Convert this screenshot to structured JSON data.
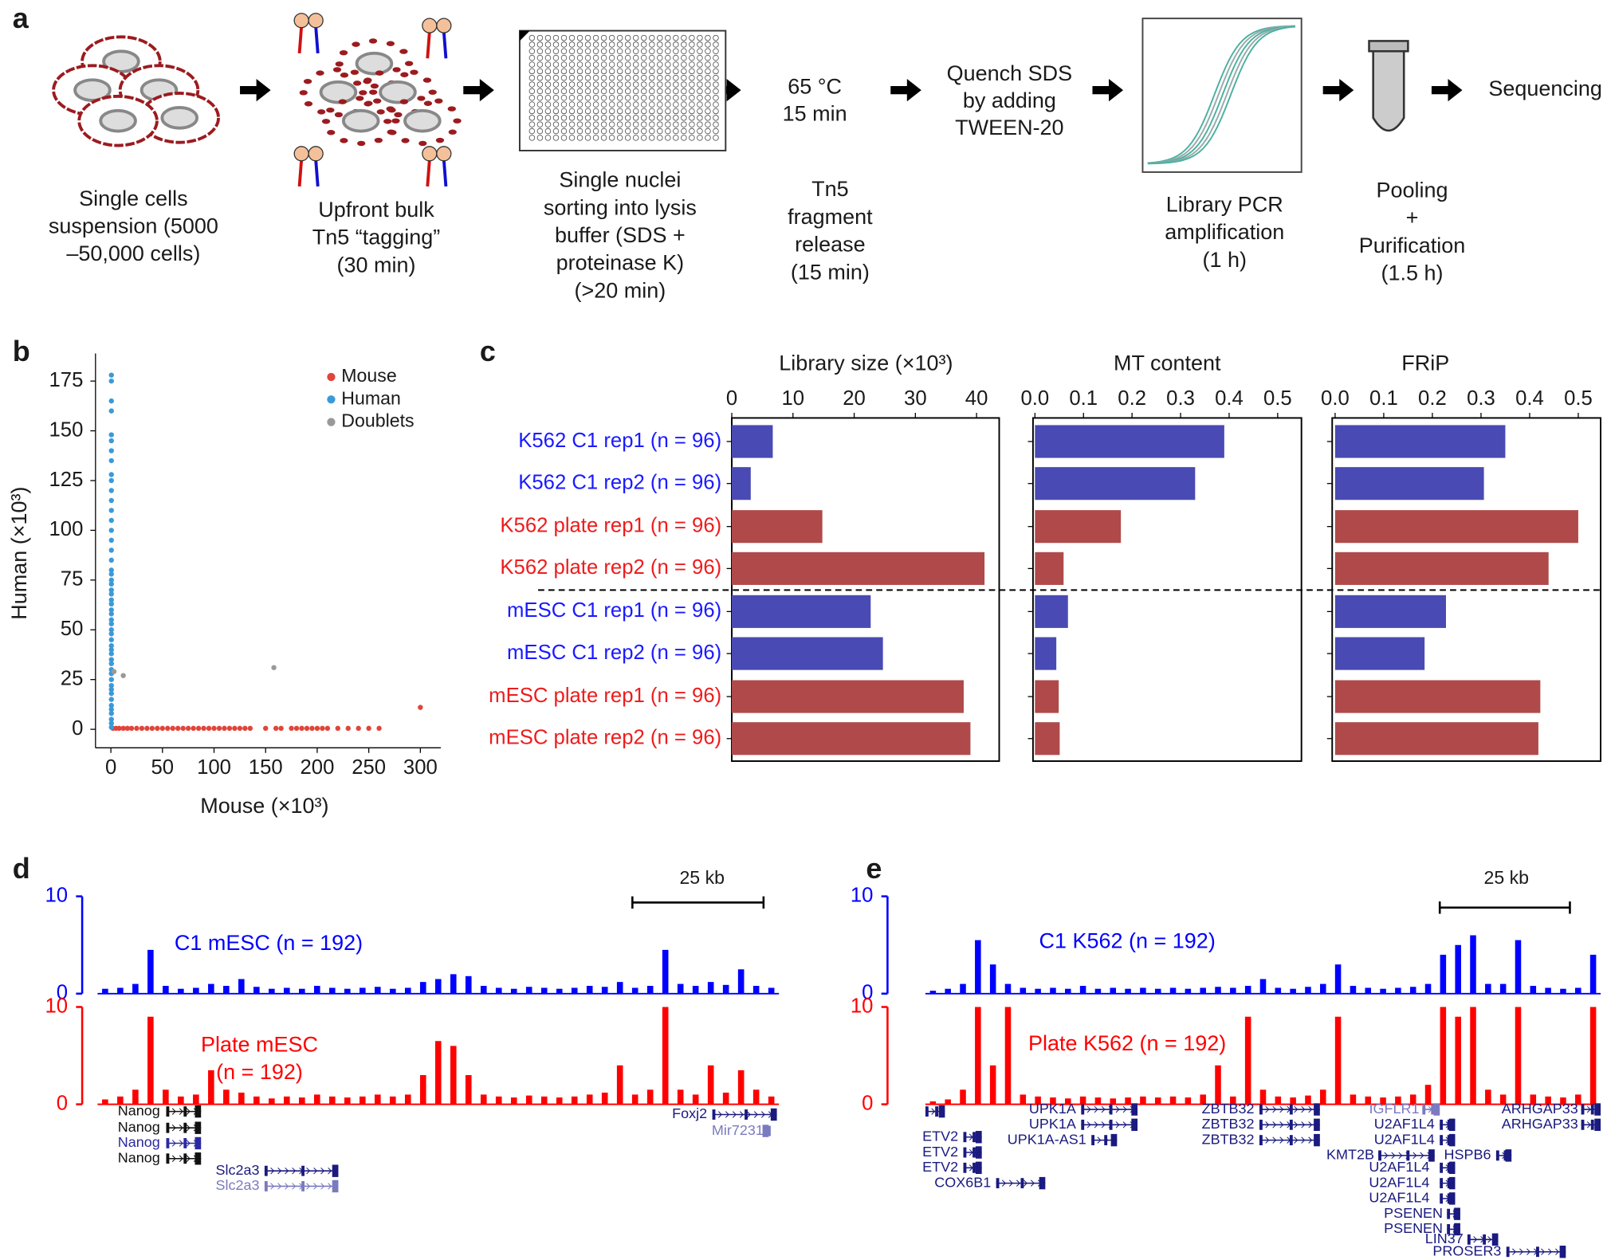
{
  "panels": [
    "a",
    "b",
    "c",
    "d",
    "e"
  ],
  "workflow": {
    "captions": [
      [
        "Single cells",
        "suspension (5000",
        "–50,000 cells)"
      ],
      [
        "Upfront bulk",
        "Tn5 “tagging”",
        "(30 min)"
      ],
      [
        "Single nuclei",
        "sorting into lysis",
        "buffer (SDS +",
        "proteinase K)",
        "(>20 min)"
      ],
      [
        "Tn5",
        "fragment",
        "release",
        "(15 min)"
      ],
      [
        "Library PCR",
        "amplification",
        "(1 h)"
      ],
      [
        "Pooling",
        "+",
        "Purification",
        "(1.5 h)"
      ]
    ],
    "inline": [
      [
        "65 °C",
        "15 min"
      ],
      [
        "Quench SDS",
        "by adding",
        "TWEEN-20"
      ],
      [
        "Sequencing"
      ]
    ]
  },
  "chart_data": [
    {
      "type": "scatter",
      "x_label": "Mouse (×10³)",
      "y_label": "Human (×10³)",
      "xlim": [
        -14.9,
        319.8
      ],
      "ylim": [
        -9.3,
        188.9
      ],
      "xticks": [
        0,
        50,
        100,
        150,
        200,
        250,
        300
      ],
      "yticks": [
        0,
        25,
        50,
        75,
        100,
        125,
        150,
        175
      ],
      "series": [
        {
          "name": "Mouse",
          "color": "#e0453a",
          "x": [
            2,
            5,
            8,
            12,
            16,
            20,
            25,
            30,
            35,
            40,
            45,
            50,
            55,
            60,
            65,
            70,
            75,
            80,
            85,
            90,
            95,
            100,
            105,
            110,
            115,
            120,
            125,
            130,
            135,
            150,
            160,
            165,
            175,
            180,
            185,
            190,
            195,
            200,
            205,
            210,
            220,
            230,
            240,
            250,
            260,
            300
          ],
          "y": [
            0.5,
            0.5,
            0.5,
            0.5,
            0.5,
            0.5,
            0.5,
            0.5,
            0.5,
            0.5,
            0.5,
            0.5,
            0.5,
            0.5,
            0.5,
            0.5,
            0.5,
            0.5,
            0.5,
            0.5,
            0.5,
            0.5,
            0.5,
            0.5,
            0.5,
            0.5,
            0.5,
            0.5,
            0.5,
            0.5,
            0.5,
            0.5,
            0.5,
            0.5,
            0.5,
            0.5,
            0.5,
            0.5,
            0.5,
            0.5,
            0.5,
            0.5,
            0.5,
            0.5,
            0.5,
            11
          ]
        },
        {
          "name": "Human",
          "color": "#3a9ad9",
          "x": [
            0.5,
            0.5,
            0.5,
            0.5,
            0.5,
            0.5,
            0.5,
            0.5,
            0.5,
            0.5,
            0.5,
            0.5,
            0.5,
            0.5,
            0.5,
            0.5,
            0.5,
            0.5,
            0.5,
            0.5,
            0.5,
            0.5,
            0.5,
            0.5,
            0.5,
            0.5,
            0.5,
            0.5,
            0.5,
            0.5,
            0.5,
            0.5,
            0.5,
            0.5,
            0.5,
            0.5,
            0.5,
            0.5,
            0.5,
            0.5,
            0.5,
            0.5,
            0.5,
            0.5,
            0.5,
            0.5,
            0.5,
            0.5,
            0.5,
            0.5,
            0.5
          ],
          "y": [
            1,
            3,
            5,
            8,
            10,
            12,
            15,
            18,
            20,
            22,
            25,
            28,
            30,
            33,
            35,
            38,
            40,
            42,
            45,
            48,
            50,
            53,
            55,
            58,
            60,
            63,
            65,
            68,
            70,
            73,
            75,
            78,
            80,
            85,
            90,
            95,
            100,
            105,
            110,
            115,
            120,
            125,
            128,
            135,
            140,
            145,
            148,
            160,
            165,
            175,
            178
          ]
        },
        {
          "name": "Doublets",
          "color": "#999999",
          "x": [
            3,
            12,
            158
          ],
          "y": [
            29,
            27,
            31
          ]
        }
      ]
    },
    {
      "type": "barh",
      "title": "Library size (×10³)",
      "categories": [
        "K562 C1 rep1 (n = 96)",
        "K562 C1 rep2 (n = 96)",
        "K562 plate rep1 (n = 96)",
        "K562 plate rep2 (n = 96)",
        "mESC C1 rep1 (n = 96)",
        "mESC C1 rep2 (n = 96)",
        "mESC plate rep1 (n = 96)",
        "mESC plate rep2 (n = 96)"
      ],
      "label_colors": [
        "#1a1aff",
        "#1a1aff",
        "#ee1c1c",
        "#ee1c1c",
        "#1a1aff",
        "#1a1aff",
        "#ee1c1c",
        "#ee1c1c"
      ],
      "colors": [
        "#4a4ab4",
        "#4a4ab4",
        "#b04a4a",
        "#b04a4a",
        "#4a4ab4",
        "#4a4ab4",
        "#b04a4a",
        "#b04a4a"
      ],
      "values": [
        6.7,
        3.1,
        14.8,
        41.3,
        22.7,
        24.7,
        37.9,
        39.0
      ],
      "xlim": [
        0,
        43.7
      ],
      "xticks": [
        0,
        10,
        20,
        30,
        40
      ]
    },
    {
      "type": "barh",
      "title": "MT content",
      "colors": [
        "#4a4ab4",
        "#4a4ab4",
        "#b04a4a",
        "#b04a4a",
        "#4a4ab4",
        "#4a4ab4",
        "#b04a4a",
        "#b04a4a"
      ],
      "values": [
        0.39,
        0.33,
        0.177,
        0.059,
        0.068,
        0.044,
        0.049,
        0.051
      ],
      "xlim": [
        -0.004,
        0.549
      ],
      "xticks": [
        {
          "value": 0,
          "label": "0.0"
        },
        0.1,
        0.2,
        0.3,
        0.4,
        0.5
      ]
    },
    {
      "type": "barh",
      "title": "FRiP",
      "colors": [
        "#4a4ab4",
        "#4a4ab4",
        "#b04a4a",
        "#b04a4a",
        "#4a4ab4",
        "#4a4ab4",
        "#b04a4a",
        "#b04a4a"
      ],
      "values": [
        0.35,
        0.306,
        0.5,
        0.439,
        0.228,
        0.184,
        0.422,
        0.418
      ],
      "xlim": [
        -0.006,
        0.546
      ],
      "xticks": [
        {
          "value": 0,
          "label": "0.0"
        },
        0.1,
        0.2,
        0.3,
        0.4,
        0.5
      ]
    },
    {
      "type": "track",
      "ylim": [
        0,
        10
      ],
      "yticks": [
        0,
        10
      ],
      "scale_bar": "25 kb",
      "series": [
        {
          "label": [
            "C1 mESC (n = 192)"
          ],
          "color": "#0000ff",
          "values": [
            0.5,
            0.6,
            1,
            4.5,
            0.8,
            0.5,
            0.6,
            1,
            0.8,
            1.5,
            0.7,
            0.5,
            0.6,
            0.5,
            0.8,
            0.6,
            0.5,
            0.6,
            0.7,
            0.5,
            0.6,
            1.2,
            1.5,
            2,
            1.8,
            0.8,
            0.6,
            0.5,
            0.7,
            0.6,
            0.5,
            0.6,
            0.8,
            0.7,
            1.2,
            0.6,
            0.8,
            4.5,
            1,
            0.8,
            1.2,
            0.9,
            2.5,
            0.8,
            0.6
          ]
        },
        {
          "label": [
            "Plate mESC",
            "(n = 192)"
          ],
          "color": "#ff0000",
          "values": [
            0.5,
            0.8,
            1.5,
            9,
            1.5,
            0.8,
            1,
            3.5,
            1.5,
            1.2,
            0.8,
            0.6,
            0.8,
            0.7,
            1,
            0.8,
            0.7,
            0.8,
            1,
            0.8,
            1,
            3,
            6.5,
            6,
            3,
            1,
            0.8,
            0.7,
            0.9,
            0.8,
            0.7,
            0.8,
            1,
            1.2,
            4,
            1,
            1.5,
            10,
            1.5,
            1,
            4,
            1.2,
            3.5,
            1.5,
            0.8
          ]
        }
      ],
      "genes": [
        "Nanog",
        "Nanog",
        "Nanog",
        "Nanog",
        "Slc2a3",
        "Slc2a3",
        "Foxj2",
        "Mir7231"
      ]
    },
    {
      "type": "track",
      "ylim": [
        0,
        10
      ],
      "yticks": [
        0,
        10
      ],
      "scale_bar": "25 kb",
      "series": [
        {
          "label": [
            "C1 K562 (n = 192)"
          ],
          "color": "#0000ff",
          "values": [
            0.3,
            0.5,
            1,
            5.5,
            3,
            1,
            0.6,
            0.5,
            0.6,
            0.5,
            0.8,
            0.5,
            0.6,
            0.5,
            0.6,
            0.5,
            0.6,
            0.5,
            0.6,
            0.7,
            0.6,
            0.8,
            1.5,
            0.6,
            0.5,
            0.7,
            1,
            3,
            0.8,
            0.6,
            0.5,
            0.6,
            0.7,
            1,
            4,
            5,
            6,
            1,
            1,
            5.5,
            0.8,
            0.6,
            0.5,
            0.6,
            4
          ]
        },
        {
          "label": [
            "Plate K562 (n = 192)"
          ],
          "color": "#ff0000",
          "values": [
            0.3,
            0.5,
            1.5,
            10,
            4,
            10,
            1,
            0.8,
            0.7,
            0.6,
            0.8,
            0.7,
            0.6,
            0.7,
            0.8,
            0.7,
            0.8,
            0.7,
            1,
            4,
            0.8,
            9,
            1.5,
            0.8,
            0.7,
            0.9,
            1.5,
            9,
            1,
            0.8,
            0.7,
            0.8,
            1,
            2,
            10,
            9,
            10,
            1.5,
            1,
            10,
            1,
            0.8,
            0.7,
            1,
            10
          ]
        }
      ],
      "genes": [
        "ETV2",
        "ETV2",
        "ETV2",
        "COX6B1",
        "UPK1A",
        "UPK1A",
        "UPK1A-AS1",
        "ZBTB32",
        "ZBTB32",
        "ZBTB32",
        "KMT2B",
        "IGFLR1",
        "U2AF1L4",
        "U2AF1L4",
        "U2AF1L4",
        "U2AF1L4",
        "U2AF1L4",
        "HSPB6",
        "PSENEN",
        "PSENEN",
        "LIN37",
        "PROSER3",
        "ARHGAP33",
        "ARHGAP33"
      ]
    }
  ]
}
